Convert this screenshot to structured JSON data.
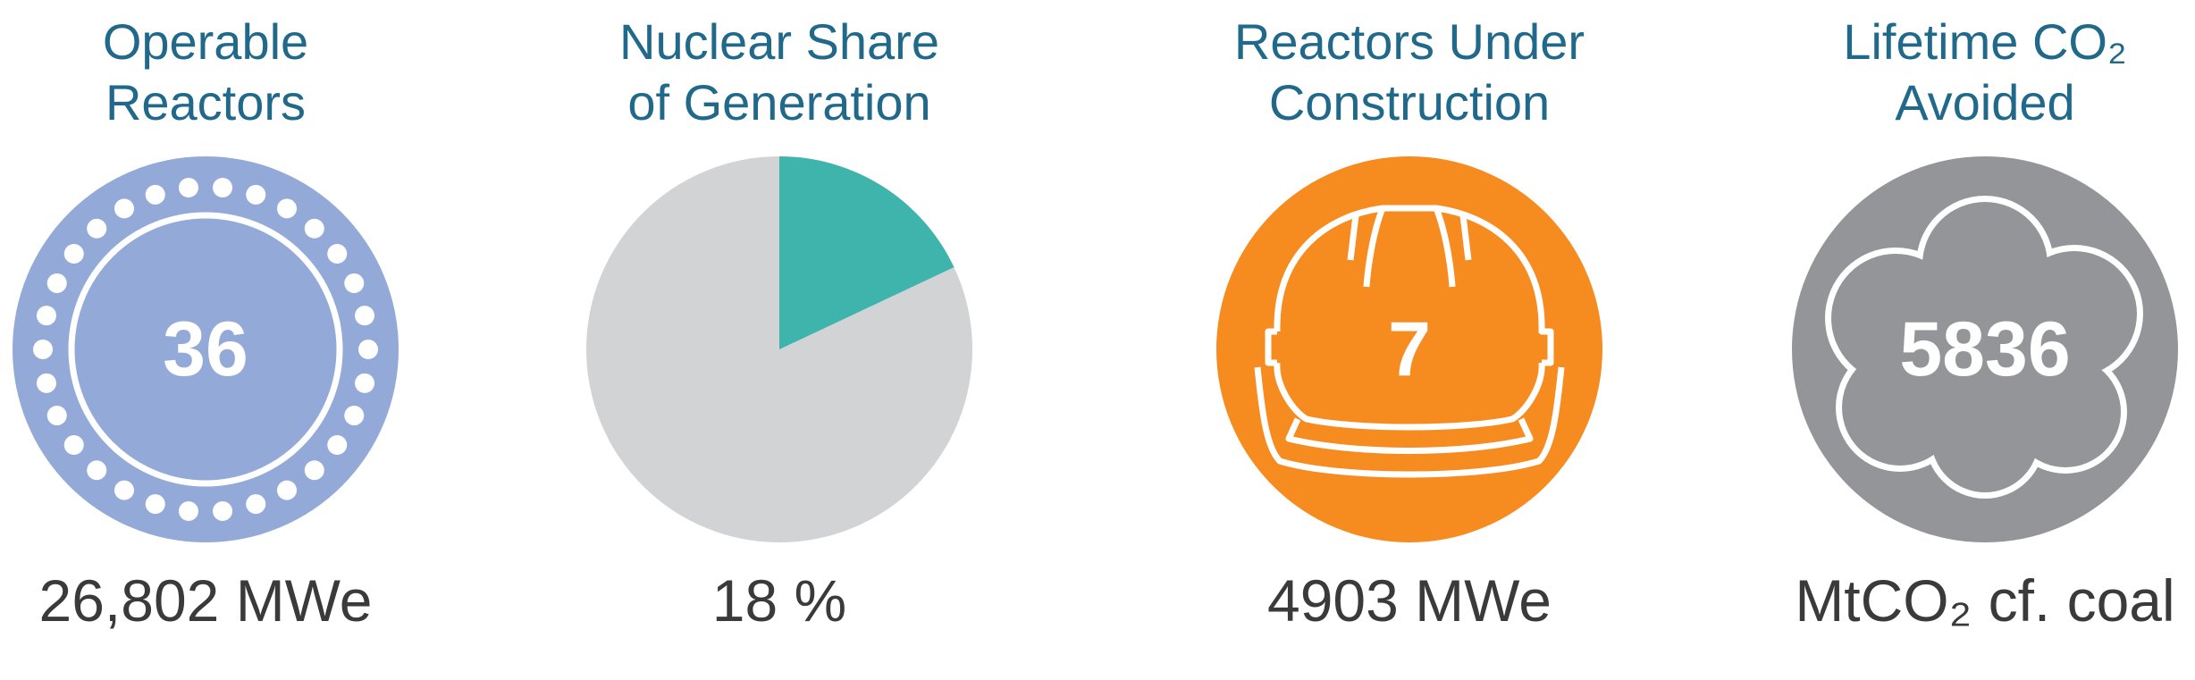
{
  "panels": [
    {
      "title": [
        "Operable",
        "Reactors"
      ],
      "value": 36,
      "label": "26,802 MWe"
    },
    {
      "title": [
        "Nuclear Share",
        "of Generation"
      ],
      "value": 18,
      "value_label": "18 %"
    },
    {
      "title": [
        "Reactors Under",
        "Construction"
      ],
      "value": 7,
      "label": "4903 MWe"
    },
    {
      "title": [
        "Lifetime CO₂",
        "Avoided"
      ],
      "value": 5836,
      "label": "MtCO₂ cf. coal"
    }
  ]
}
